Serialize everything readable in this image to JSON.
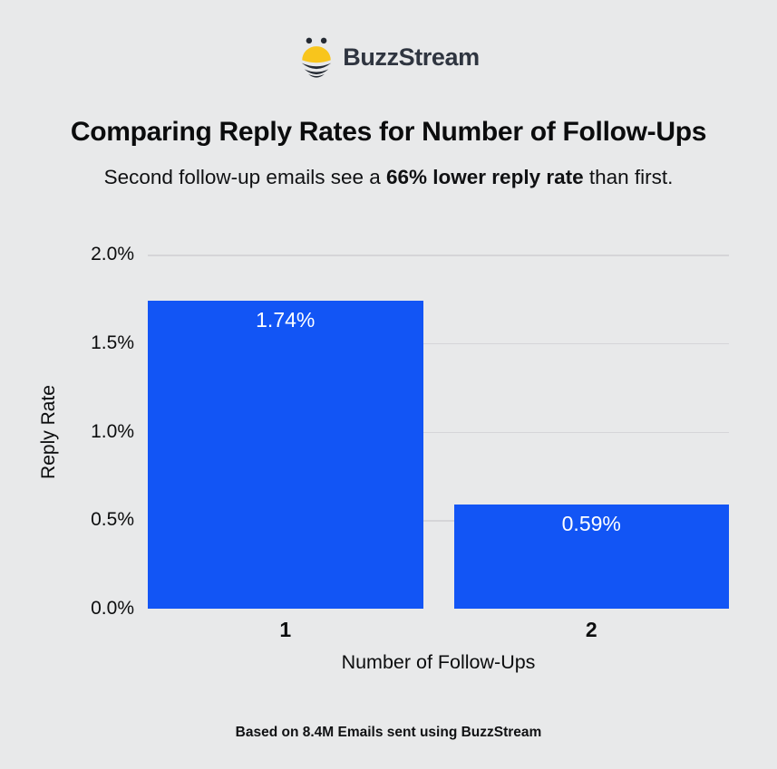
{
  "page": {
    "background_color": "#e8e9ea"
  },
  "logo": {
    "brand": "BuzzStream",
    "icon": "bee-icon",
    "bee_yellow": "#f8c51c",
    "bee_dark": "#242a33",
    "text_color": "#2f3540"
  },
  "title": "Comparing Reply Rates for Number of Follow-Ups",
  "subtitle": {
    "prefix": "Second follow-up emails see a ",
    "bold": "66% lower reply rate",
    "suffix": " than first."
  },
  "footer": "Based on 8.4M Emails sent using BuzzStream",
  "chart_data": {
    "type": "bar",
    "title": "",
    "categories": [
      "1",
      "2"
    ],
    "values": [
      1.74,
      0.59
    ],
    "value_labels": [
      "1.74%",
      "0.59%"
    ],
    "xlabel": "Number of Follow-Ups",
    "ylabel": "Reply Rate",
    "ylim": [
      0,
      2.0
    ],
    "yticks": [
      0.0,
      0.5,
      1.0,
      1.5,
      2.0
    ],
    "ytick_labels": [
      "0.0%",
      "0.5%",
      "1.0%",
      "1.5%",
      "2.0%"
    ],
    "grid": true,
    "legend": false,
    "bar_color": "#1255f5",
    "value_label_color": "#ffffff",
    "gridline_color": "#d5d5d8"
  }
}
